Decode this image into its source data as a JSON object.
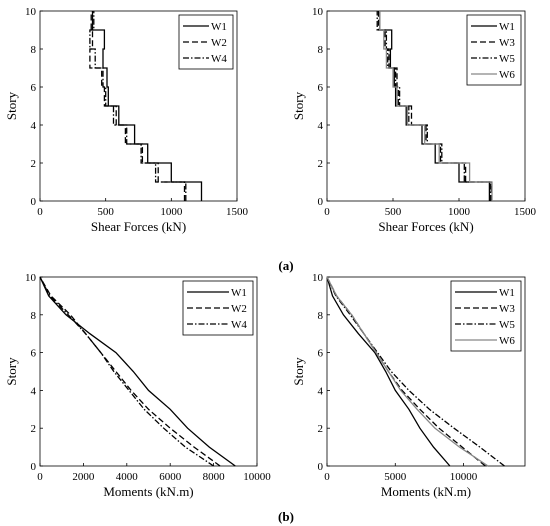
{
  "panel_labels": {
    "a": "(a)",
    "b": "(b)"
  },
  "chart_data": [
    {
      "type": "line",
      "step": true,
      "xlabel": "Shear Forces (kN)",
      "ylabel": "Story",
      "xlim": [
        0,
        1500
      ],
      "ylim": [
        0,
        10
      ],
      "xticks": [
        0,
        500,
        1000,
        1500
      ],
      "yticks": [
        0,
        2,
        4,
        6,
        8,
        10
      ],
      "legend": "top-right",
      "series": [
        {
          "name": "W1",
          "style": "solid",
          "color": "#000000",
          "values": [
            1230,
            1000,
            820,
            720,
            600,
            520,
            510,
            480,
            490,
            400
          ]
        },
        {
          "name": "W2",
          "style": "dashed",
          "color": "#000000",
          "values": [
            1100,
            900,
            780,
            650,
            580,
            490,
            470,
            380,
            400,
            390
          ]
        },
        {
          "name": "W4",
          "style": "dashdot",
          "color": "#000000",
          "values": [
            1110,
            880,
            770,
            660,
            560,
            500,
            480,
            420,
            380,
            410
          ]
        }
      ]
    },
    {
      "type": "line",
      "step": true,
      "xlabel": "Shear Forces (kN)",
      "ylabel": "Story",
      "xlim": [
        0,
        1500
      ],
      "ylim": [
        0,
        10
      ],
      "xticks": [
        0,
        500,
        1000,
        1500
      ],
      "yticks": [
        0,
        2,
        4,
        6,
        8,
        10
      ],
      "legend": "top-right",
      "series": [
        {
          "name": "W1",
          "style": "solid",
          "color": "#000000",
          "values": [
            1230,
            1000,
            820,
            720,
            600,
            520,
            510,
            480,
            490,
            400
          ]
        },
        {
          "name": "W3",
          "style": "dashed",
          "color": "#000000",
          "values": [
            1245,
            1050,
            860,
            750,
            640,
            540,
            530,
            470,
            440,
            390
          ]
        },
        {
          "name": "W5",
          "style": "dashdot",
          "color": "#000000",
          "values": [
            1240,
            1040,
            870,
            760,
            620,
            550,
            520,
            460,
            450,
            380
          ]
        },
        {
          "name": "W6",
          "style": "solid",
          "color": "#888888",
          "values": [
            1250,
            1080,
            850,
            740,
            610,
            530,
            500,
            450,
            430,
            400
          ]
        }
      ]
    },
    {
      "type": "line",
      "xlabel": "Moments (kN.m)",
      "ylabel": "Story",
      "xlim": [
        0,
        10000
      ],
      "ylim": [
        0,
        10
      ],
      "xticks": [
        0,
        2000,
        4000,
        6000,
        8000,
        10000
      ],
      "yticks": [
        0,
        2,
        4,
        6,
        8,
        10
      ],
      "legend": "top-right",
      "series": [
        {
          "name": "W1",
          "style": "solid",
          "color": "#000000",
          "x": [
            9000,
            7800,
            6800,
            6000,
            5000,
            4300,
            3500,
            2300,
            1200,
            400,
            0
          ],
          "y": [
            0,
            1,
            2,
            3,
            4,
            5,
            6,
            7,
            8,
            9,
            10
          ]
        },
        {
          "name": "W2",
          "style": "dashed",
          "color": "#000000",
          "x": [
            8300,
            7100,
            6000,
            5000,
            4200,
            3500,
            2800,
            2100,
            1400,
            500,
            0
          ],
          "y": [
            0,
            1,
            2,
            3,
            4,
            5,
            6,
            7,
            8,
            9,
            10
          ]
        },
        {
          "name": "W4",
          "style": "dashdot",
          "color": "#000000",
          "x": [
            8000,
            6700,
            5700,
            4800,
            4100,
            3400,
            2800,
            2100,
            1300,
            450,
            0
          ],
          "y": [
            0,
            1,
            2,
            3,
            4,
            5,
            6,
            7,
            8,
            9,
            10
          ]
        }
      ]
    },
    {
      "type": "line",
      "xlabel": "Moments (kN.m)",
      "ylabel": "Story",
      "xlim": [
        0,
        14500
      ],
      "ylim": [
        0,
        10
      ],
      "xticks": [
        0,
        5000,
        10000
      ],
      "yticks": [
        0,
        2,
        4,
        6,
        8,
        10
      ],
      "legend": "top-right",
      "series": [
        {
          "name": "W1",
          "style": "solid",
          "color": "#000000",
          "x": [
            9000,
            7800,
            6800,
            6000,
            5000,
            4300,
            3500,
            2300,
            1200,
            400,
            0
          ],
          "y": [
            0,
            1,
            2,
            3,
            4,
            5,
            6,
            7,
            8,
            9,
            10
          ]
        },
        {
          "name": "W3",
          "style": "dashed",
          "color": "#000000",
          "x": [
            11600,
            9900,
            8200,
            6800,
            5500,
            4500,
            3600,
            2700,
            1800,
            700,
            0
          ],
          "y": [
            0,
            1,
            2,
            3,
            4,
            5,
            6,
            7,
            8,
            9,
            10
          ]
        },
        {
          "name": "W5",
          "style": "dashdot",
          "color": "#000000",
          "x": [
            13000,
            11200,
            9300,
            7500,
            6000,
            4700,
            3700,
            2700,
            1700,
            650,
            0
          ],
          "y": [
            0,
            1,
            2,
            3,
            4,
            5,
            6,
            7,
            8,
            9,
            10
          ]
        },
        {
          "name": "W6",
          "style": "solid",
          "color": "#888888",
          "x": [
            11800,
            9700,
            7900,
            6600,
            5400,
            4500,
            3600,
            2700,
            1800,
            700,
            0
          ],
          "y": [
            0,
            1,
            2,
            3,
            4,
            5,
            6,
            7,
            8,
            9,
            10
          ]
        }
      ]
    }
  ]
}
